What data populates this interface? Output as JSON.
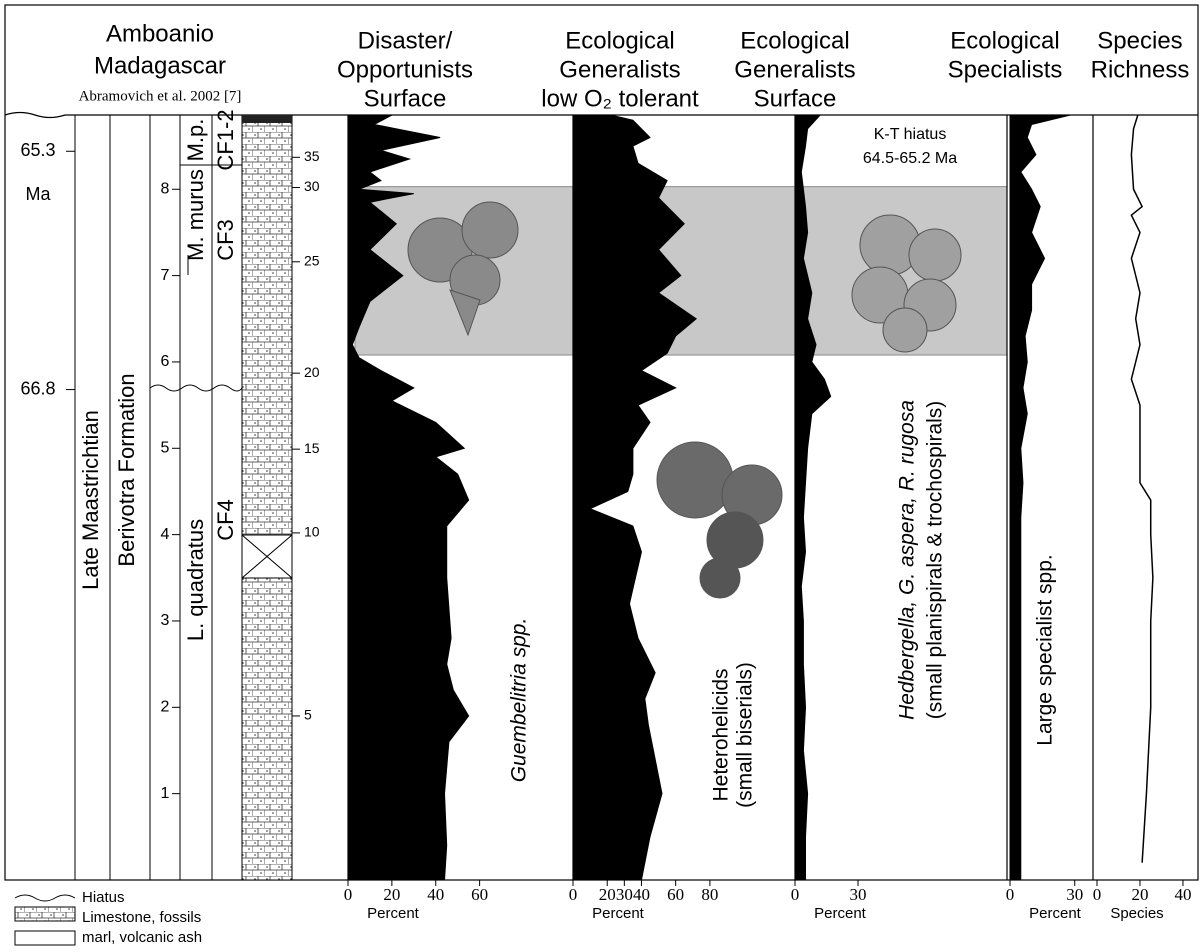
{
  "title_lines": [
    "Amboanio",
    "Madagascar"
  ],
  "citation": "Abramovich et al. 2002 [7]",
  "depth_axis": {
    "ylim": [
      0,
      8.86
    ],
    "yticks": [
      1,
      2,
      3,
      4,
      5,
      6,
      7,
      8
    ]
  },
  "age_ticks": [
    {
      "value": 8.44,
      "label": "65.3"
    },
    {
      "value": 5.68,
      "label": "66.8"
    }
  ],
  "age_unit": "Ma",
  "strat_labels": {
    "stage": "Late Maastrichtian",
    "formation": "Berivotra Formation",
    "zones": [
      "L. quadratus",
      "M. murus",
      "M.p."
    ],
    "cf_zones": [
      "CF4",
      "CF3",
      "CF1-2"
    ]
  },
  "bed_ticks": [
    {
      "value": 1.9,
      "label": "5"
    },
    {
      "value": 4.02,
      "label": "10"
    },
    {
      "value": 4.99,
      "label": "15"
    },
    {
      "value": 5.87,
      "label": "20"
    },
    {
      "value": 7.16,
      "label": "25"
    },
    {
      "value": 8.02,
      "label": "30"
    },
    {
      "value": 8.37,
      "label": "35"
    }
  ],
  "hiatus_band": {
    "range": [
      6.08,
      8.03
    ],
    "label_lines": [
      "K-T hiatus",
      "64.5-65.2 Ma"
    ],
    "color": "#c8c8c8"
  },
  "legend": [
    "Hiatus",
    "Limestone, fossils",
    "marl, volcanic ash"
  ],
  "chart_data": [
    {
      "type": "area",
      "title": [
        "Disaster/",
        "Opportunists",
        "Surface"
      ],
      "xlabel": "Percent",
      "color": "#000000",
      "xlim": [
        0,
        62
      ],
      "xticks": [
        0,
        20,
        40,
        60
      ],
      "annotations": [
        "Guembelitria spp."
      ],
      "depth": [
        8.86,
        8.75,
        8.6,
        8.45,
        8.35,
        8.2,
        8.1,
        8.0,
        7.95,
        7.85,
        7.6,
        7.3,
        7.0,
        6.7,
        6.4,
        6.2,
        6.05,
        5.9,
        5.7,
        5.55,
        5.3,
        5.0,
        4.9,
        4.7,
        4.4,
        4.1,
        3.5,
        2.8,
        2.5,
        2.2,
        1.9,
        1.6,
        1.0,
        0.4,
        0
      ],
      "values": [
        20,
        12,
        42,
        15,
        28,
        10,
        15,
        5,
        30,
        10,
        22,
        10,
        25,
        10,
        5,
        2,
        5,
        15,
        30,
        20,
        40,
        53,
        40,
        50,
        55,
        45,
        45,
        47,
        45,
        48,
        55,
        46,
        44,
        45,
        44
      ]
    },
    {
      "type": "area",
      "title": [
        "Ecological",
        "Generalists",
        "low O₂ tolerant"
      ],
      "xlabel": "Percent",
      "color": "#000000",
      "xlim": [
        0,
        90
      ],
      "xticks": [
        0,
        20,
        30,
        40,
        60,
        80
      ],
      "annotations": [
        "Heterohelicids",
        "(small biserials)"
      ],
      "depth": [
        8.86,
        8.8,
        8.6,
        8.5,
        8.3,
        8.1,
        7.9,
        7.6,
        7.3,
        7.0,
        6.8,
        6.5,
        6.3,
        6.1,
        5.9,
        5.7,
        5.5,
        5.3,
        5.0,
        4.7,
        4.5,
        4.3,
        4.1,
        3.8,
        3.2,
        2.8,
        2.4,
        2.1,
        1.8,
        1.4,
        1.0,
        0.5,
        0
      ],
      "values": [
        22,
        35,
        45,
        35,
        38,
        55,
        50,
        65,
        50,
        63,
        50,
        72,
        60,
        55,
        40,
        60,
        38,
        45,
        35,
        35,
        32,
        10,
        35,
        40,
        33,
        38,
        48,
        42,
        44,
        48,
        52,
        45,
        40
      ]
    },
    {
      "type": "area",
      "title": [
        "Ecological",
        "Generalists",
        "Surface"
      ],
      "xlabel": "Percent",
      "color": "#000000",
      "xlim": [
        0,
        45
      ],
      "xticks": [
        0,
        30
      ],
      "annotations": [
        "Hedbergella, G. aspera, R. rugosa",
        "(small planispirals & trochospirals)"
      ],
      "depth": [
        8.86,
        8.7,
        8.5,
        8.2,
        7.8,
        7.5,
        7.2,
        6.8,
        6.5,
        6.2,
        6.0,
        5.8,
        5.6,
        5.4,
        5.0,
        4.6,
        4.2,
        3.8,
        3.4,
        3.0,
        2.5,
        2.0,
        1.5,
        1.0,
        0.5,
        0
      ],
      "values": [
        12,
        6,
        5,
        3,
        5,
        6,
        4,
        8,
        6,
        10,
        8,
        14,
        17,
        8,
        6,
        5,
        4,
        5,
        3,
        4,
        4,
        5,
        4,
        6,
        5,
        5
      ]
    },
    {
      "type": "area",
      "title": [
        "Ecological",
        "Specialists"
      ],
      "xlabel": "Percent",
      "color": "#000000",
      "xlim": [
        0,
        38
      ],
      "xticks": [
        0,
        30
      ],
      "annotations": [
        "Large specialist spp."
      ],
      "depth": [
        8.86,
        8.75,
        8.6,
        8.4,
        8.2,
        8.0,
        7.8,
        7.5,
        7.2,
        6.9,
        6.6,
        6.3,
        6.0,
        5.7,
        5.4,
        5.0,
        4.6,
        4.2,
        3.8,
        3.0,
        2.0,
        1.0,
        0
      ],
      "values": [
        28,
        10,
        8,
        12,
        5,
        10,
        14,
        10,
        16,
        10,
        10,
        7,
        8,
        6,
        8,
        5,
        6,
        5,
        5,
        5,
        5,
        5,
        5
      ]
    },
    {
      "type": "line",
      "title": [
        "Species",
        "Richness"
      ],
      "xlabel": "Species",
      "color": "#000000",
      "xlim": [
        0,
        47
      ],
      "xticks": [
        0,
        20,
        40
      ],
      "annotations": [],
      "depth": [
        8.86,
        8.7,
        8.4,
        8.0,
        7.8,
        7.7,
        7.5,
        7.2,
        6.8,
        6.5,
        6.2,
        5.8,
        5.5,
        5.0,
        4.6,
        4.4,
        4.0,
        3.5,
        3.0,
        2.0,
        1.0,
        0.2
      ],
      "values": [
        19,
        17,
        16,
        17,
        21,
        16,
        20,
        16,
        20,
        18,
        20,
        16,
        20,
        20,
        20,
        25,
        25,
        26,
        25,
        25,
        23,
        21
      ]
    }
  ]
}
